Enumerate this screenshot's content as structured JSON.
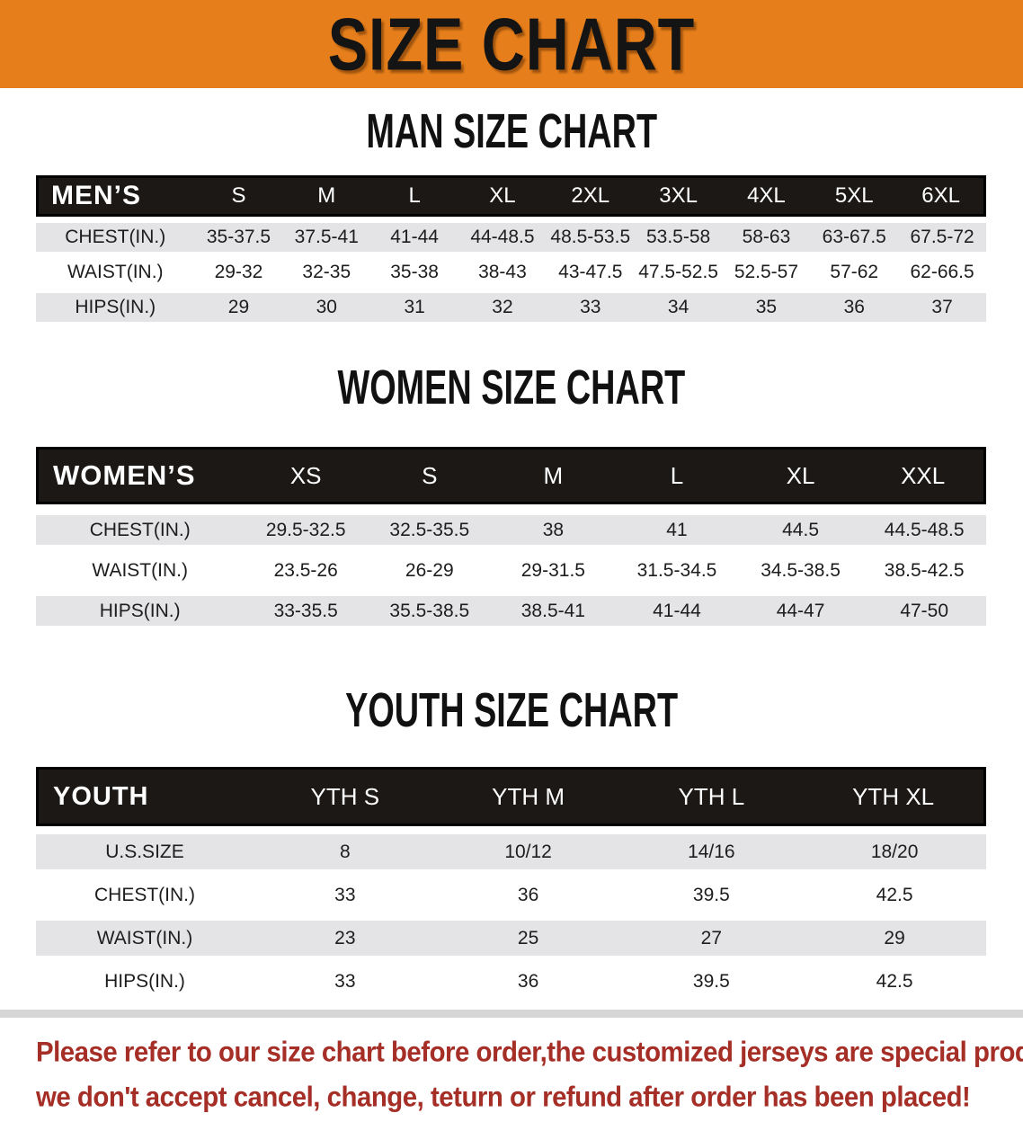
{
  "banner": {
    "title": "SIZE CHART"
  },
  "colors": {
    "banner_orange": "#E67F1B",
    "table_header_black": "#1B1816",
    "row_gray": "#E4E4E6",
    "note_red": "#A52E26"
  },
  "man": {
    "heading": "MAN SIZE CHART",
    "label": "MEN’S",
    "sizes": [
      "S",
      "M",
      "L",
      "XL",
      "2XL",
      "3XL",
      "4XL",
      "5XL",
      "6XL"
    ],
    "rows": [
      {
        "label": "CHEST(IN.)",
        "values": [
          "35-37.5",
          "37.5-41",
          "41-44",
          "44-48.5",
          "48.5-53.5",
          "53.5-58",
          "58-63",
          "63-67.5",
          "67.5-72"
        ]
      },
      {
        "label": "WAIST(IN.)",
        "values": [
          "29-32",
          "32-35",
          "35-38",
          "38-43",
          "43-47.5",
          "47.5-52.5",
          "52.5-57",
          "57-62",
          "62-66.5"
        ]
      },
      {
        "label": "HIPS(IN.)",
        "values": [
          "29",
          "30",
          "31",
          "32",
          "33",
          "34",
          "35",
          "36",
          "37"
        ]
      }
    ]
  },
  "women": {
    "heading": "WOMEN SIZE CHART",
    "label": "WOMEN’S",
    "sizes": [
      "XS",
      "S",
      "M",
      "L",
      "XL",
      "XXL"
    ],
    "rows": [
      {
        "label": "CHEST(IN.)",
        "values": [
          "29.5-32.5",
          "32.5-35.5",
          "38",
          "41",
          "44.5",
          "44.5-48.5"
        ]
      },
      {
        "label": "WAIST(IN.)",
        "values": [
          "23.5-26",
          "26-29",
          "29-31.5",
          "31.5-34.5",
          "34.5-38.5",
          "38.5-42.5"
        ]
      },
      {
        "label": "HIPS(IN.)",
        "values": [
          "33-35.5",
          "35.5-38.5",
          "38.5-41",
          "41-44",
          "44-47",
          "47-50"
        ]
      }
    ]
  },
  "youth": {
    "heading": "YOUTH SIZE CHART",
    "label": "YOUTH",
    "sizes": [
      "YTH S",
      "YTH M",
      "YTH L",
      "YTH XL"
    ],
    "rows": [
      {
        "label": "U.S.SIZE",
        "values": [
          "8",
          "10/12",
          "14/16",
          "18/20"
        ]
      },
      {
        "label": "CHEST(IN.)",
        "values": [
          "33",
          "36",
          "39.5",
          "42.5"
        ]
      },
      {
        "label": "WAIST(IN.)",
        "values": [
          "23",
          "25",
          "27",
          "29"
        ]
      },
      {
        "label": "HIPS(IN.)",
        "values": [
          "33",
          "36",
          "39.5",
          "42.5"
        ]
      }
    ]
  },
  "note": {
    "line1": "Please refer to our size chart before order,the customized jerseys are special products,",
    "line2": "we don't accept cancel, change, teturn or refund after order has been placed!"
  }
}
